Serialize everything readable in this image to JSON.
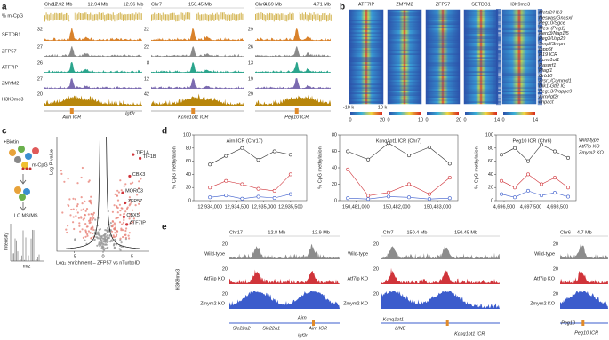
{
  "panel_a": {
    "label": "a",
    "row_labels": [
      "% m-CpG",
      "SETDB1",
      "ZFP57",
      "ATF7IP",
      "ZMYM2",
      "H3K9me3"
    ],
    "columns": [
      {
        "chrom": "Chr17",
        "positions": [
          "12.92 Mb",
          "12.94 Mb",
          "12.96 Mb"
        ],
        "scales": [
          32,
          27,
          26,
          27,
          20
        ],
        "locus": "Airn ICR",
        "gene": "Igf2r"
      },
      {
        "chrom": "Chr7",
        "positions": [
          "150.45 Mb"
        ],
        "scales": [
          22,
          22,
          8,
          12,
          42
        ],
        "locus": "Kcnq1ot1 ICR"
      },
      {
        "chrom": "Chr6",
        "positions": [
          "4.69 Mb",
          "4.71 Mb"
        ],
        "scales": [
          29,
          26,
          13,
          19,
          29
        ],
        "locus": "Peg10 ICR"
      }
    ]
  },
  "panel_b": {
    "label": "b",
    "columns": [
      "ATF7IP",
      "ZMYM2",
      "ZFP57",
      "SETDB1",
      "H3K9me3"
    ],
    "genes": [
      "Mcts2/H13",
      "Nespas/Gnasxl",
      "Peg10/Sgce",
      "Mest (Peg1)",
      "Herc3/Nap1l5",
      "Peg3/Usp29",
      "Snrpf/Snrpn",
      "Inpp5f",
      "H19 ICR",
      "Kcnq1ot1",
      "Rasgrf1",
      "Plagl1",
      "Grb10",
      "Zrsr1/Commd1",
      "Dlk1-Gtl2 IG",
      "Peg13/Trappc9",
      "Airn/Igf2r",
      "Impact"
    ],
    "axis_left": "-10 k",
    "axis_right": "10 k",
    "colorbars": [
      [
        0,
        20
      ],
      [
        0,
        10
      ],
      [
        0,
        20
      ],
      [
        0,
        14
      ],
      [
        0,
        14
      ]
    ]
  },
  "panel_c": {
    "label": "c",
    "diagram": {
      "biotin": "+Biotin",
      "mcpg": "m-CpG",
      "ms": "LC MS/MS",
      "intensity": "Intensity",
      "mz": "m/z"
    },
    "x_label": "Log₂ enrichment – ZFP57 vs nTurboID",
    "y_label": "–Log P value",
    "xlim": [
      -8,
      8
    ],
    "ylim": [
      0,
      9
    ],
    "xticks": [
      -5,
      0,
      5
    ],
    "points": [
      {
        "name": "TIF1A",
        "x": 5.2,
        "y": 7.6
      },
      {
        "name": "TIF1B",
        "x": 6.4,
        "y": 7.3
      },
      {
        "name": "CBX3",
        "x": 4.6,
        "y": 5.9
      },
      {
        "name": "MORC3",
        "x": 3.4,
        "y": 4.6
      },
      {
        "name": "ZFP57",
        "x": 3.8,
        "y": 3.8
      },
      {
        "name": "CBX5",
        "x": 3.6,
        "y": 2.7
      },
      {
        "name": "ATF7IP",
        "x": 4.1,
        "y": 2.1
      }
    ]
  },
  "panel_d": {
    "label": "d",
    "y_label": "% CpG methylation",
    "legend": [
      "Wild-type",
      "Atf7ip KO",
      "Zmym2 KO"
    ],
    "colors": [
      "#333333",
      "#d0343a",
      "#3b5ccc"
    ],
    "plots": [
      {
        "title": "Airn ICR (Chr17)",
        "xlim": [
          12933700,
          12935800
        ],
        "ylim": [
          0,
          100
        ],
        "yticks": [
          0,
          20,
          40,
          60,
          80,
          100
        ],
        "xticks": [
          {
            "value": 12934000,
            "label": "12,934,000"
          },
          {
            "value": 12934500,
            "label": "12,934,500"
          },
          {
            "value": 12935000,
            "label": "12,935,000"
          },
          {
            "value": 12935500,
            "label": "12,935,500"
          }
        ],
        "x": [
          12934000,
          12934300,
          12934600,
          12934900,
          12935200,
          12935500
        ],
        "series": [
          [
            55,
            68,
            80,
            62,
            75,
            70
          ],
          [
            20,
            30,
            25,
            18,
            15,
            40
          ],
          [
            5,
            8,
            3,
            6,
            4,
            10
          ]
        ]
      },
      {
        "title": "Kcnq1ot1 ICR (Chr7)",
        "xlim": [
          150480600,
          150483500
        ],
        "ylim": [
          0,
          80
        ],
        "yticks": [
          0,
          20,
          40,
          60,
          80
        ],
        "xticks": [
          {
            "value": 150481000,
            "label": "150,481,000"
          },
          {
            "value": 150482000,
            "label": "150,482,000"
          },
          {
            "value": 150483000,
            "label": "150,483,000"
          }
        ],
        "x": [
          150480800,
          150481300,
          150481800,
          150482300,
          150482800,
          150483300
        ],
        "series": [
          [
            60,
            50,
            70,
            55,
            65,
            45
          ],
          [
            38,
            6,
            10,
            20,
            8,
            28
          ],
          [
            3,
            2,
            5,
            4,
            2,
            3
          ]
        ]
      },
      {
        "title": "Peg10 ICR (Chr6)",
        "xlim": [
          4696200,
          4699200
        ],
        "ylim": [
          0,
          100
        ],
        "yticks": [
          0,
          20,
          40,
          60,
          80,
          100
        ],
        "xticks": [
          {
            "value": 4696500,
            "label": "4,696,500"
          },
          {
            "value": 4697500,
            "label": "4,697,500"
          },
          {
            "value": 4698500,
            "label": "4,698,500"
          }
        ],
        "x": [
          4696400,
          4696900,
          4697400,
          4697900,
          4698400,
          4698900
        ],
        "series": [
          [
            70,
            80,
            60,
            85,
            75,
            65
          ],
          [
            30,
            20,
            40,
            25,
            35,
            20
          ],
          [
            10,
            5,
            15,
            8,
            12,
            6
          ]
        ]
      }
    ]
  },
  "panel_e": {
    "label": "e",
    "y_label": "H3K9me3",
    "conditions": [
      "Wild-type",
      "Atf7ip KO",
      "Zmym2 KO"
    ],
    "scale": "20",
    "columns": [
      {
        "headers": [
          "Chr17",
          "12.8 Mb",
          "12.9 Mb"
        ],
        "genes": [
          "Slc22a2",
          "Slc22a1",
          "Airn",
          "Igf2r",
          "Airn ICR"
        ]
      },
      {
        "headers": [
          "Chr7",
          "150.4 Mb",
          "150.45 Mb"
        ],
        "genes": [
          "Kcnq1ot1",
          "LINE",
          "Kcnq1ot1 ICR"
        ]
      },
      {
        "headers": [
          "Chr6",
          "4.7 Mb"
        ],
        "genes": [
          "Peg10",
          "Peg10 ICR"
        ]
      }
    ]
  }
}
